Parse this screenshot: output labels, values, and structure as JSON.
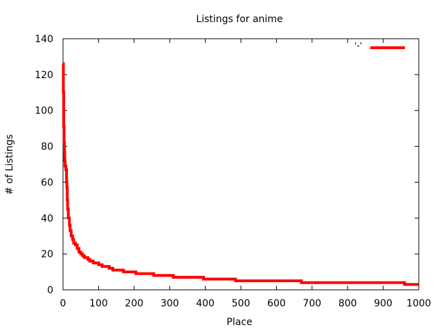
{
  "chart_data": {
    "type": "line",
    "title": "Listings for anime",
    "xlabel": "Place",
    "ylabel": "# of Listings",
    "xlim": [
      0,
      1000
    ],
    "ylim": [
      0,
      140
    ],
    "x_ticks": [
      0,
      100,
      200,
      300,
      400,
      500,
      600,
      700,
      800,
      900,
      1000
    ],
    "y_ticks": [
      0,
      20,
      40,
      60,
      80,
      100,
      120,
      140
    ],
    "grid": false,
    "legend_position": "top-right",
    "series": [
      {
        "name": "'-'",
        "color": "#ff0000",
        "style": "steps",
        "points": [
          [
            0,
            126
          ],
          [
            1,
            110
          ],
          [
            2,
            91
          ],
          [
            3,
            82
          ],
          [
            4,
            77
          ],
          [
            5,
            72
          ],
          [
            6,
            69
          ],
          [
            8,
            67
          ],
          [
            10,
            60
          ],
          [
            11,
            57
          ],
          [
            12,
            50
          ],
          [
            13,
            45
          ],
          [
            15,
            40
          ],
          [
            18,
            36
          ],
          [
            20,
            33
          ],
          [
            23,
            30
          ],
          [
            27,
            28
          ],
          [
            30,
            26
          ],
          [
            35,
            25
          ],
          [
            40,
            23
          ],
          [
            45,
            21
          ],
          [
            50,
            20
          ],
          [
            55,
            19
          ],
          [
            60,
            18
          ],
          [
            70,
            17
          ],
          [
            75,
            16
          ],
          [
            85,
            15
          ],
          [
            100,
            14
          ],
          [
            110,
            13
          ],
          [
            130,
            12
          ],
          [
            140,
            11
          ],
          [
            170,
            10
          ],
          [
            205,
            9
          ],
          [
            255,
            8
          ],
          [
            310,
            7
          ],
          [
            395,
            6
          ],
          [
            485,
            5
          ],
          [
            670,
            4
          ],
          [
            960,
            3
          ],
          [
            1000,
            3
          ]
        ]
      }
    ]
  }
}
